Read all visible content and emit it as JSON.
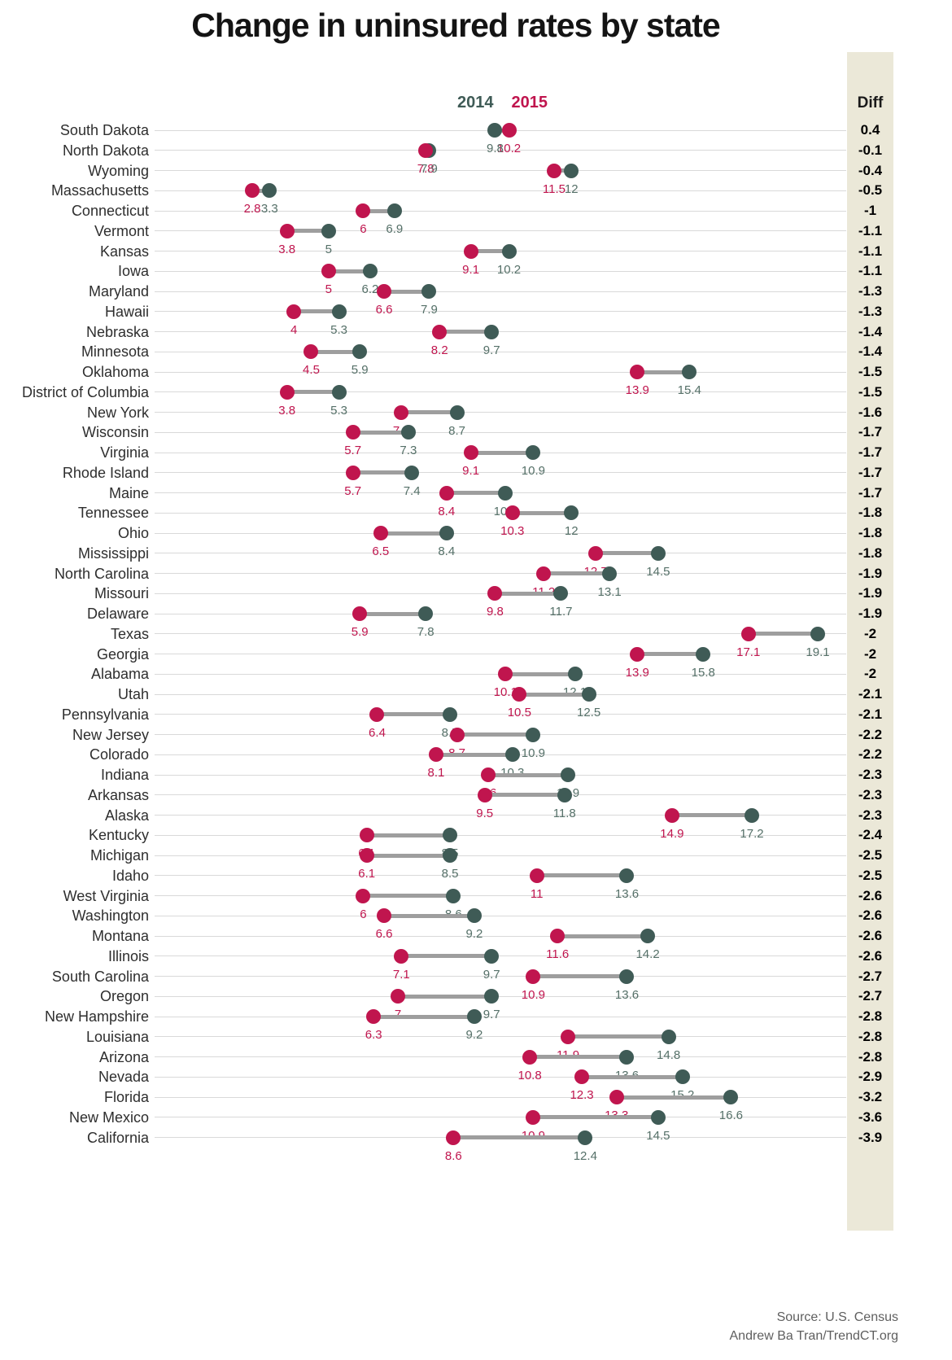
{
  "title": "Change in uninsured rates by state",
  "legend": {
    "label_2014": "2014",
    "label_2015": "2015"
  },
  "diff_column": {
    "header": "Diff"
  },
  "footer": {
    "source": "Source: U.S. Census",
    "credit": "Andrew Ba Tran/TrendCT.org"
  },
  "colors": {
    "dot_2014": "#3f5b56",
    "dot_2015": "#c0154e",
    "label_2014_text": "#557068",
    "diff_band": "#ebe8d8",
    "gridline": "#d9d9d9",
    "connector": "#9e9e9e",
    "title_text": "#141414",
    "state_label_text": "#2e2e2e",
    "diff_text": "#000000",
    "footer_text": "#5f5f5f"
  },
  "chart_data": {
    "type": "dumbbell",
    "title": "Change in uninsured rates by state",
    "series": [
      "2014",
      "2015"
    ],
    "legend_position": "top",
    "grid": true,
    "x_domain": [
      2.8,
      19.1
    ],
    "diff_header": "Diff",
    "rows": [
      {
        "state": "South Dakota",
        "y2014": 9.8,
        "y2015": 10.2,
        "diff": "0.4"
      },
      {
        "state": "North Dakota",
        "y2014": 7.9,
        "y2015": 7.8,
        "diff": "-0.1"
      },
      {
        "state": "Wyoming",
        "y2014": 12,
        "y2015": 11.5,
        "diff": "-0.4"
      },
      {
        "state": "Massachusetts",
        "y2014": 3.3,
        "y2015": 2.8,
        "diff": "-0.5"
      },
      {
        "state": "Connecticut",
        "y2014": 6.9,
        "y2015": 6,
        "diff": "-1"
      },
      {
        "state": "Vermont",
        "y2014": 5,
        "y2015": 3.8,
        "diff": "-1.1"
      },
      {
        "state": "Kansas",
        "y2014": 10.2,
        "y2015": 9.1,
        "diff": "-1.1"
      },
      {
        "state": "Iowa",
        "y2014": 6.2,
        "y2015": 5,
        "diff": "-1.1"
      },
      {
        "state": "Maryland",
        "y2014": 7.9,
        "y2015": 6.6,
        "diff": "-1.3"
      },
      {
        "state": "Hawaii",
        "y2014": 5.3,
        "y2015": 4,
        "diff": "-1.3"
      },
      {
        "state": "Nebraska",
        "y2014": 9.7,
        "y2015": 8.2,
        "diff": "-1.4"
      },
      {
        "state": "Minnesota",
        "y2014": 5.9,
        "y2015": 4.5,
        "diff": "-1.4"
      },
      {
        "state": "Oklahoma",
        "y2014": 15.4,
        "y2015": 13.9,
        "diff": "-1.5"
      },
      {
        "state": "District of Columbia",
        "y2014": 5.3,
        "y2015": 3.8,
        "diff": "-1.5"
      },
      {
        "state": "New York",
        "y2014": 8.7,
        "y2015": 7.1,
        "diff": "-1.6"
      },
      {
        "state": "Wisconsin",
        "y2014": 7.3,
        "y2015": 5.7,
        "diff": "-1.7"
      },
      {
        "state": "Virginia",
        "y2014": 10.9,
        "y2015": 9.1,
        "diff": "-1.7"
      },
      {
        "state": "Rhode Island",
        "y2014": 7.4,
        "y2015": 5.7,
        "diff": "-1.7"
      },
      {
        "state": "Maine",
        "y2014": 10.1,
        "y2015": 8.4,
        "diff": "-1.7"
      },
      {
        "state": "Tennessee",
        "y2014": 12,
        "y2015": 10.3,
        "diff": "-1.8"
      },
      {
        "state": "Ohio",
        "y2014": 8.4,
        "y2015": 6.5,
        "diff": "-1.8"
      },
      {
        "state": "Mississippi",
        "y2014": 14.5,
        "y2015": 12.7,
        "diff": "-1.8"
      },
      {
        "state": "North Carolina",
        "y2014": 13.1,
        "y2015": 11.2,
        "diff": "-1.9"
      },
      {
        "state": "Missouri",
        "y2014": 11.7,
        "y2015": 9.8,
        "diff": "-1.9"
      },
      {
        "state": "Delaware",
        "y2014": 7.8,
        "y2015": 5.9,
        "diff": "-1.9"
      },
      {
        "state": "Texas",
        "y2014": 19.1,
        "y2015": 17.1,
        "diff": "-2"
      },
      {
        "state": "Georgia",
        "y2014": 15.8,
        "y2015": 13.9,
        "diff": "-2"
      },
      {
        "state": "Alabama",
        "y2014": 12.1,
        "y2015": 10.1,
        "diff": "-2"
      },
      {
        "state": "Utah",
        "y2014": 12.5,
        "y2015": 10.5,
        "diff": "-2.1"
      },
      {
        "state": "Pennsylvania",
        "y2014": 8.5,
        "y2015": 6.4,
        "diff": "-2.1"
      },
      {
        "state": "New Jersey",
        "y2014": 10.9,
        "y2015": 8.7,
        "diff": "-2.2"
      },
      {
        "state": "Colorado",
        "y2014": 10.3,
        "y2015": 8.1,
        "diff": "-2.2"
      },
      {
        "state": "Indiana",
        "y2014": 11.9,
        "y2015": 9.6,
        "diff": "-2.3"
      },
      {
        "state": "Arkansas",
        "y2014": 11.8,
        "y2015": 9.5,
        "diff": "-2.3"
      },
      {
        "state": "Alaska",
        "y2014": 17.2,
        "y2015": 14.9,
        "diff": "-2.3"
      },
      {
        "state": "Kentucky",
        "y2014": 8.5,
        "y2015": 6.1,
        "diff": "-2.4"
      },
      {
        "state": "Michigan",
        "y2014": 8.5,
        "y2015": 6.1,
        "diff": "-2.5"
      },
      {
        "state": "Idaho",
        "y2014": 13.6,
        "y2015": 11,
        "diff": "-2.5"
      },
      {
        "state": "West Virginia",
        "y2014": 8.6,
        "y2015": 6,
        "diff": "-2.6"
      },
      {
        "state": "Washington",
        "y2014": 9.2,
        "y2015": 6.6,
        "diff": "-2.6"
      },
      {
        "state": "Montana",
        "y2014": 14.2,
        "y2015": 11.6,
        "diff": "-2.6"
      },
      {
        "state": "Illinois",
        "y2014": 9.7,
        "y2015": 7.1,
        "diff": "-2.6"
      },
      {
        "state": "South Carolina",
        "y2014": 13.6,
        "y2015": 10.9,
        "diff": "-2.7"
      },
      {
        "state": "Oregon",
        "y2014": 9.7,
        "y2015": 7,
        "diff": "-2.7"
      },
      {
        "state": "New Hampshire",
        "y2014": 9.2,
        "y2015": 6.3,
        "diff": "-2.8"
      },
      {
        "state": "Louisiana",
        "y2014": 14.8,
        "y2015": 11.9,
        "diff": "-2.8"
      },
      {
        "state": "Arizona",
        "y2014": 13.6,
        "y2015": 10.8,
        "diff": "-2.8"
      },
      {
        "state": "Nevada",
        "y2014": 15.2,
        "y2015": 12.3,
        "diff": "-2.9"
      },
      {
        "state": "Florida",
        "y2014": 16.6,
        "y2015": 13.3,
        "diff": "-3.2"
      },
      {
        "state": "New Mexico",
        "y2014": 14.5,
        "y2015": 10.9,
        "diff": "-3.6"
      },
      {
        "state": "California",
        "y2014": 12.4,
        "y2015": 8.6,
        "diff": "-3.9"
      }
    ]
  }
}
